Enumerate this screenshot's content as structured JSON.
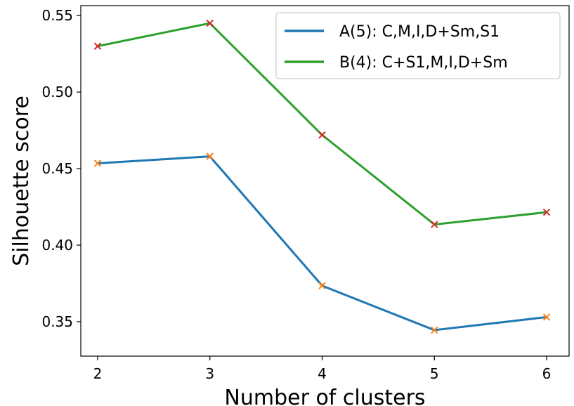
{
  "chart_data": {
    "type": "line",
    "title": "",
    "xlabel": "Number of clusters",
    "ylabel": "Silhouette score",
    "x": [
      2,
      3,
      4,
      5,
      6
    ],
    "xticks": [
      "2",
      "3",
      "4",
      "5",
      "6"
    ],
    "xlim": [
      1.85,
      6.2
    ],
    "ylim": [
      0.3275,
      0.5565
    ],
    "yticks": [
      "0.35",
      "0.40",
      "0.45",
      "0.50",
      "0.55"
    ],
    "ytick_values": [
      0.35,
      0.4,
      0.45,
      0.5,
      0.55
    ],
    "grid": false,
    "legend_position": "upper right",
    "series": [
      {
        "name": "A(5): C,M,I,D+Sm,S1",
        "values": [
          0.4535,
          0.458,
          0.3735,
          0.3445,
          0.353
        ],
        "color": "#1f77b4",
        "marker_color": "#ff7f0e",
        "marker": "x"
      },
      {
        "name": "B(4): C+S1,M,I,D+Sm",
        "values": [
          0.53,
          0.545,
          0.472,
          0.4135,
          0.4215
        ],
        "color": "#2ca02c",
        "marker_color": "#d62728",
        "marker": "x"
      }
    ]
  }
}
